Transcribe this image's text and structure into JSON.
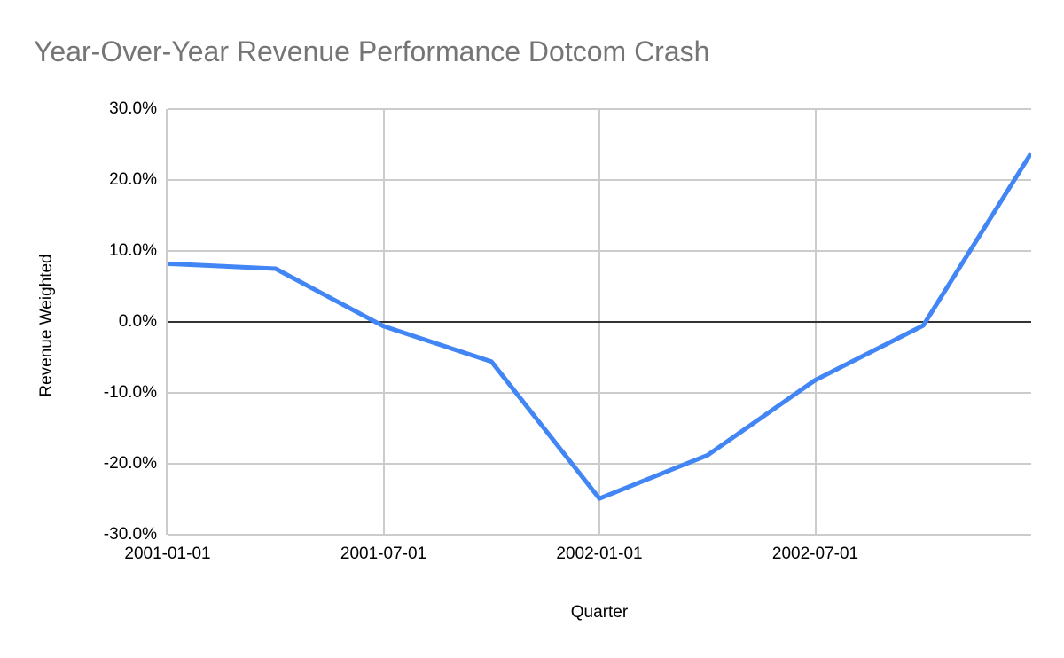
{
  "page": {
    "background": "#ffffff"
  },
  "chart_data": {
    "type": "line",
    "title": "Year-Over-Year Revenue Performance Dotcom Crash",
    "xlabel": "Quarter",
    "ylabel": "Revenue Weighted",
    "x": [
      "2001-01-01",
      "2001-04-01",
      "2001-07-01",
      "2001-10-01",
      "2002-01-01",
      "2002-04-01",
      "2002-07-01",
      "2002-10-01",
      "2003-01-01"
    ],
    "series": [
      {
        "name": "Revenue Weighted",
        "color": "#4285f4",
        "values": [
          8.2,
          7.5,
          -0.6,
          -5.6,
          -24.9,
          -18.8,
          -8.2,
          -0.5,
          23.8
        ]
      }
    ],
    "ylim": [
      -30,
      30
    ],
    "ytick_values": [
      30,
      20,
      10,
      0,
      -10,
      -20,
      -30
    ],
    "ytick_labels": [
      "30.0%",
      "20.0%",
      "10.0%",
      "0.0%",
      "-10.0%",
      "-20.0%",
      "-30.0%"
    ],
    "xtick_labels": [
      "2001-01-01",
      "2001-07-01",
      "2002-01-01",
      "2002-07-01"
    ],
    "grid": true,
    "legend": "none",
    "colors": {
      "gridline": "#cccccc",
      "zero_line": "#333333",
      "title_text": "#757575",
      "axis_text": "#000000"
    }
  }
}
